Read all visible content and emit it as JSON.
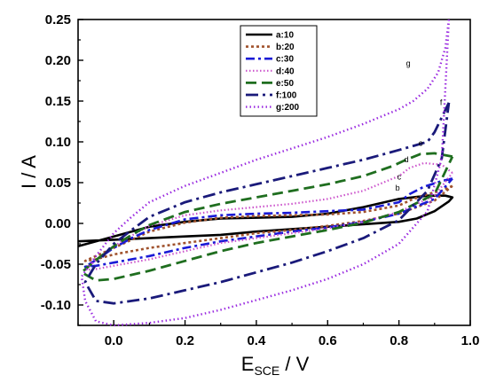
{
  "chart_data": {
    "type": "line",
    "xlabel": "E",
    "xlabel_sub": "SCE",
    "xlabel_unit": " / V",
    "ylabel": "I / A",
    "xlim": [
      -0.1,
      1.0
    ],
    "ylim": [
      -0.125,
      0.25
    ],
    "x_ticks": [
      {
        "value": 0.0,
        "label": "0.0"
      },
      {
        "value": 0.2,
        "label": "0.2"
      },
      {
        "value": 0.4,
        "label": "0.4"
      },
      {
        "value": 0.6,
        "label": "0.6"
      },
      {
        "value": 0.8,
        "label": "0.8"
      },
      {
        "value": 1.0,
        "label": "1.0"
      }
    ],
    "y_ticks": [
      {
        "value": 0.25,
        "label": "0.25"
      },
      {
        "value": 0.2,
        "label": "0.20"
      },
      {
        "value": 0.15,
        "label": "0.15"
      },
      {
        "value": 0.1,
        "label": "0.10"
      },
      {
        "value": 0.05,
        "label": "0.05"
      },
      {
        "value": 0.0,
        "label": "0.00"
      },
      {
        "value": -0.05,
        "label": "-0.05"
      },
      {
        "value": -0.1,
        "label": "-0.10"
      }
    ],
    "grid": false,
    "legend_position": "top-center",
    "series": [
      {
        "name": "a:10",
        "curve_label": "",
        "color": "#000000",
        "dash": "",
        "width": 2.6,
        "points": [
          [
            -0.1,
            -0.028
          ],
          [
            0.0,
            -0.016
          ],
          [
            0.1,
            -0.004
          ],
          [
            0.2,
            0.002
          ],
          [
            0.3,
            0.006
          ],
          [
            0.4,
            0.007
          ],
          [
            0.5,
            0.008
          ],
          [
            0.6,
            0.012
          ],
          [
            0.7,
            0.02
          ],
          [
            0.8,
            0.03
          ],
          [
            0.88,
            0.034
          ],
          [
            0.93,
            0.034
          ],
          [
            0.95,
            0.032
          ],
          [
            0.94,
            0.027
          ],
          [
            0.9,
            0.015
          ],
          [
            0.85,
            0.006
          ],
          [
            0.8,
            0.002
          ],
          [
            0.7,
            -0.001
          ],
          [
            0.6,
            -0.004
          ],
          [
            0.5,
            -0.007
          ],
          [
            0.4,
            -0.01
          ],
          [
            0.3,
            -0.014
          ],
          [
            0.2,
            -0.016
          ],
          [
            0.1,
            -0.018
          ],
          [
            0.0,
            -0.02
          ],
          [
            -0.1,
            -0.022
          ]
        ]
      },
      {
        "name": "b:20",
        "curve_label": "b",
        "color": "#a0522d",
        "dash": "3,3",
        "width": 2.6,
        "points": [
          [
            0.95,
            0.046
          ],
          [
            0.92,
            0.04
          ],
          [
            0.88,
            0.036
          ],
          [
            0.84,
            0.03
          ],
          [
            0.8,
            0.022
          ],
          [
            0.7,
            0.014
          ],
          [
            0.6,
            0.011
          ],
          [
            0.5,
            0.01
          ],
          [
            0.4,
            0.009
          ],
          [
            0.3,
            0.007
          ],
          [
            0.2,
            0.001
          ],
          [
            0.1,
            -0.01
          ],
          [
            0.05,
            -0.02
          ],
          [
            0.0,
            -0.03
          ],
          [
            -0.05,
            -0.04
          ],
          [
            -0.08,
            -0.046
          ],
          [
            -0.05,
            -0.044
          ],
          [
            0.0,
            -0.038
          ],
          [
            0.1,
            -0.03
          ],
          [
            0.2,
            -0.024
          ],
          [
            0.3,
            -0.018
          ],
          [
            0.4,
            -0.012
          ],
          [
            0.5,
            -0.008
          ],
          [
            0.6,
            -0.003
          ],
          [
            0.7,
            0.003
          ],
          [
            0.8,
            0.012
          ],
          [
            0.9,
            0.028
          ],
          [
            0.95,
            0.046
          ]
        ]
      },
      {
        "name": "c:30",
        "curve_label": "c",
        "color": "#1a1ad6",
        "dash": "10,4,3,4",
        "width": 2.6,
        "points": [
          [
            0.95,
            0.055
          ],
          [
            0.92,
            0.052
          ],
          [
            0.87,
            0.045
          ],
          [
            0.83,
            0.036
          ],
          [
            0.8,
            0.026
          ],
          [
            0.7,
            0.017
          ],
          [
            0.6,
            0.015
          ],
          [
            0.5,
            0.013
          ],
          [
            0.4,
            0.012
          ],
          [
            0.3,
            0.01
          ],
          [
            0.2,
            0.005
          ],
          [
            0.1,
            -0.008
          ],
          [
            0.05,
            -0.018
          ],
          [
            0.0,
            -0.03
          ],
          [
            -0.05,
            -0.045
          ],
          [
            -0.08,
            -0.053
          ],
          [
            -0.05,
            -0.052
          ],
          [
            0.0,
            -0.048
          ],
          [
            0.1,
            -0.04
          ],
          [
            0.2,
            -0.03
          ],
          [
            0.3,
            -0.022
          ],
          [
            0.4,
            -0.016
          ],
          [
            0.5,
            -0.01
          ],
          [
            0.6,
            -0.005
          ],
          [
            0.7,
            0.002
          ],
          [
            0.8,
            0.012
          ],
          [
            0.9,
            0.03
          ],
          [
            0.95,
            0.055
          ]
        ]
      },
      {
        "name": "d:40",
        "curve_label": "d",
        "color": "#cc55cc",
        "dash": "1.5,2.5",
        "width": 2.2,
        "points": [
          [
            0.95,
            0.062
          ],
          [
            0.92,
            0.072
          ],
          [
            0.87,
            0.074
          ],
          [
            0.83,
            0.068
          ],
          [
            0.8,
            0.058
          ],
          [
            0.7,
            0.04
          ],
          [
            0.6,
            0.03
          ],
          [
            0.5,
            0.024
          ],
          [
            0.4,
            0.02
          ],
          [
            0.3,
            0.016
          ],
          [
            0.2,
            0.01
          ],
          [
            0.1,
            -0.003
          ],
          [
            0.05,
            -0.015
          ],
          [
            0.0,
            -0.028
          ],
          [
            -0.05,
            -0.045
          ],
          [
            -0.08,
            -0.057
          ],
          [
            -0.05,
            -0.056
          ],
          [
            0.0,
            -0.052
          ],
          [
            0.1,
            -0.044
          ],
          [
            0.2,
            -0.034
          ],
          [
            0.3,
            -0.024
          ],
          [
            0.4,
            -0.018
          ],
          [
            0.5,
            -0.012
          ],
          [
            0.6,
            -0.006
          ],
          [
            0.7,
            0.002
          ],
          [
            0.8,
            0.014
          ],
          [
            0.9,
            0.034
          ],
          [
            0.95,
            0.062
          ]
        ]
      },
      {
        "name": "e:50",
        "curve_label": "e",
        "color": "#1f6e1f",
        "dash": "12,6",
        "width": 2.8,
        "points": [
          [
            0.95,
            0.082
          ],
          [
            0.9,
            0.086
          ],
          [
            0.86,
            0.085
          ],
          [
            0.82,
            0.078
          ],
          [
            0.78,
            0.07
          ],
          [
            0.7,
            0.058
          ],
          [
            0.6,
            0.048
          ],
          [
            0.5,
            0.04
          ],
          [
            0.4,
            0.032
          ],
          [
            0.3,
            0.024
          ],
          [
            0.2,
            0.014
          ],
          [
            0.1,
            -0.002
          ],
          [
            0.05,
            -0.014
          ],
          [
            0.0,
            -0.028
          ],
          [
            -0.05,
            -0.045
          ],
          [
            -0.09,
            -0.06
          ],
          [
            -0.05,
            -0.07
          ],
          [
            0.0,
            -0.068
          ],
          [
            0.1,
            -0.058
          ],
          [
            0.2,
            -0.046
          ],
          [
            0.3,
            -0.034
          ],
          [
            0.4,
            -0.024
          ],
          [
            0.5,
            -0.016
          ],
          [
            0.6,
            -0.008
          ],
          [
            0.7,
            0.001
          ],
          [
            0.8,
            0.014
          ],
          [
            0.9,
            0.036
          ],
          [
            0.95,
            0.082
          ]
        ]
      },
      {
        "name": "f:100",
        "curve_label": "f",
        "color": "#1a1a7a",
        "dash": "14,5,3,5",
        "width": 2.8,
        "points": [
          [
            0.94,
            0.148
          ],
          [
            0.92,
            0.13
          ],
          [
            0.9,
            0.112
          ],
          [
            0.88,
            0.1
          ],
          [
            0.84,
            0.095
          ],
          [
            0.8,
            0.09
          ],
          [
            0.7,
            0.078
          ],
          [
            0.6,
            0.068
          ],
          [
            0.5,
            0.058
          ],
          [
            0.4,
            0.048
          ],
          [
            0.3,
            0.038
          ],
          [
            0.2,
            0.026
          ],
          [
            0.1,
            0.008
          ],
          [
            0.05,
            -0.008
          ],
          [
            0.0,
            -0.025
          ],
          [
            -0.05,
            -0.05
          ],
          [
            -0.08,
            -0.072
          ],
          [
            -0.05,
            -0.095
          ],
          [
            0.0,
            -0.098
          ],
          [
            0.1,
            -0.092
          ],
          [
            0.2,
            -0.082
          ],
          [
            0.3,
            -0.072
          ],
          [
            0.4,
            -0.06
          ],
          [
            0.5,
            -0.048
          ],
          [
            0.6,
            -0.034
          ],
          [
            0.7,
            -0.018
          ],
          [
            0.8,
            0.004
          ],
          [
            0.88,
            0.04
          ],
          [
            0.92,
            0.08
          ],
          [
            0.94,
            0.148
          ]
        ]
      },
      {
        "name": "g:200",
        "curve_label": "g",
        "color": "#9a2be0",
        "dash": "1.5,3",
        "width": 2.4,
        "points": [
          [
            0.94,
            0.25
          ],
          [
            0.93,
            0.215
          ],
          [
            0.91,
            0.185
          ],
          [
            0.88,
            0.165
          ],
          [
            0.84,
            0.15
          ],
          [
            0.8,
            0.14
          ],
          [
            0.7,
            0.122
          ],
          [
            0.6,
            0.106
          ],
          [
            0.5,
            0.092
          ],
          [
            0.4,
            0.078
          ],
          [
            0.3,
            0.062
          ],
          [
            0.2,
            0.046
          ],
          [
            0.1,
            0.026
          ],
          [
            0.05,
            0.008
          ],
          [
            0.0,
            -0.012
          ],
          [
            -0.05,
            -0.04
          ],
          [
            -0.09,
            -0.065
          ],
          [
            -0.08,
            -0.095
          ],
          [
            -0.05,
            -0.12
          ],
          [
            0.0,
            -0.125
          ],
          [
            0.1,
            -0.122
          ],
          [
            0.2,
            -0.116
          ],
          [
            0.3,
            -0.106
          ],
          [
            0.4,
            -0.094
          ],
          [
            0.5,
            -0.082
          ],
          [
            0.6,
            -0.068
          ],
          [
            0.7,
            -0.05
          ],
          [
            0.8,
            -0.025
          ],
          [
            0.88,
            0.015
          ],
          [
            0.92,
            0.08
          ],
          [
            0.94,
            0.25
          ]
        ]
      }
    ],
    "curve_label_positions": [
      {
        "key": "g",
        "x": 0.82,
        "y": 0.193
      },
      {
        "key": "f",
        "x": 0.915,
        "y": 0.145
      },
      {
        "key": "e",
        "x": 0.855,
        "y": 0.095
      },
      {
        "key": "d",
        "x": 0.815,
        "y": 0.075
      },
      {
        "key": "c",
        "x": 0.795,
        "y": 0.054
      },
      {
        "key": "b",
        "x": 0.79,
        "y": 0.04
      }
    ]
  }
}
